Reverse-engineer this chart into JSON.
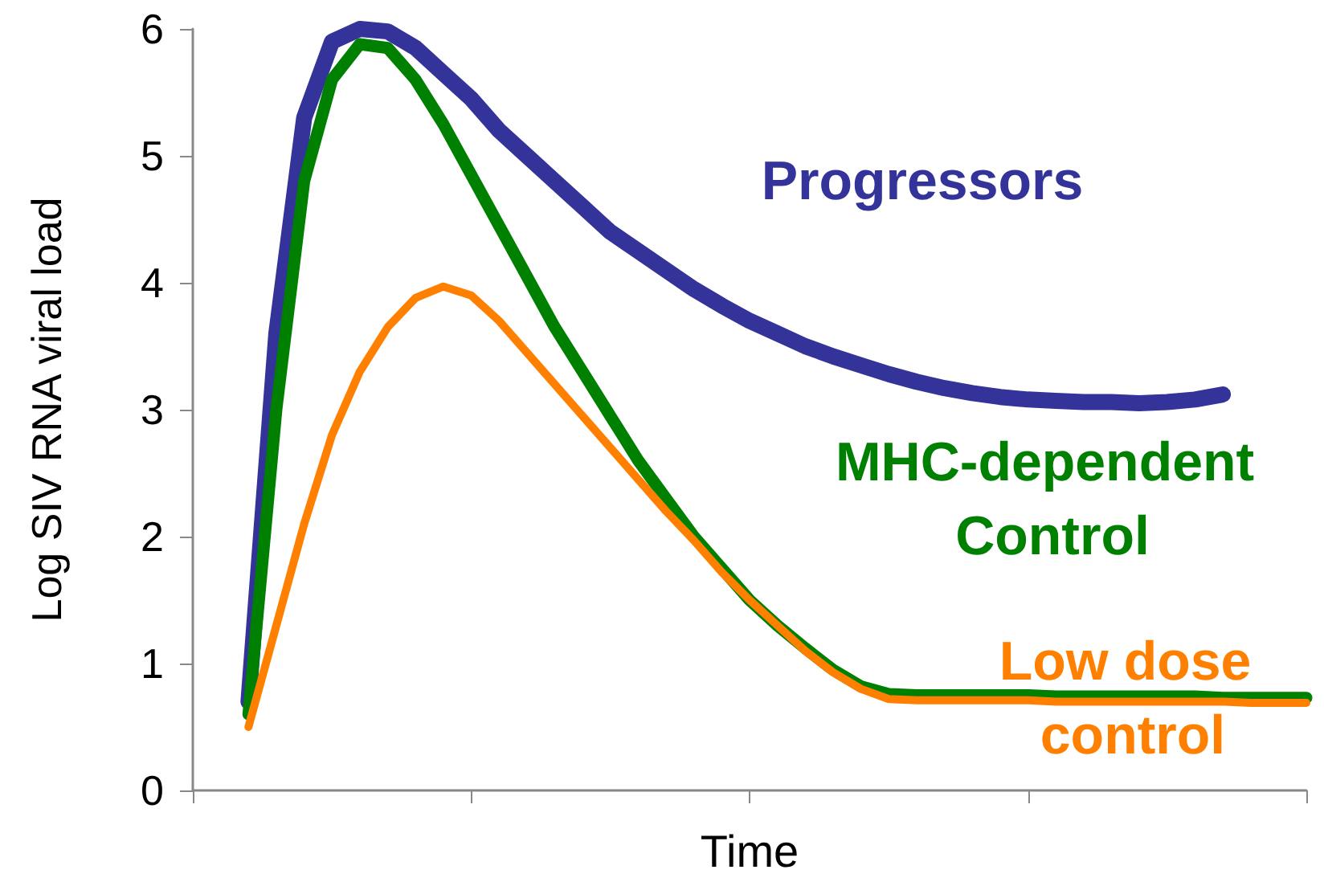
{
  "chart_data": {
    "type": "line",
    "xlabel": "Time",
    "ylabel": "Log SIV RNA viral load",
    "ylim": [
      0,
      6
    ],
    "yticks": [
      0,
      1,
      2,
      3,
      4,
      5,
      6
    ],
    "grid": false,
    "legend": false,
    "marker": "none",
    "line_style": "solid",
    "categories": [
      null,
      null,
      null,
      null,
      null,
      null,
      null,
      null,
      null,
      null,
      null,
      null,
      null,
      null,
      null,
      null,
      null,
      null,
      null,
      null,
      null,
      null,
      null,
      null,
      null,
      null,
      null,
      null,
      null,
      null,
      null,
      null,
      null,
      null,
      null,
      null,
      null,
      null,
      null,
      null,
      null
    ],
    "series": [
      {
        "name": "Progressors",
        "color": "#333399",
        "values": [
          null,
          null,
          0.7,
          3.6,
          5.3,
          5.9,
          6.0,
          5.98,
          5.85,
          5.65,
          5.45,
          5.2,
          5.0,
          4.8,
          4.6,
          4.4,
          4.25,
          4.1,
          3.95,
          3.82,
          3.7,
          3.6,
          3.5,
          3.42,
          3.35,
          3.28,
          3.22,
          3.17,
          3.13,
          3.1,
          3.08,
          3.07,
          3.06,
          3.06,
          3.05,
          3.06,
          3.08,
          3.12,
          null,
          null,
          null
        ]
      },
      {
        "name": "MHC-dependent Control",
        "color": "#008000",
        "values": [
          null,
          null,
          0.6,
          3.0,
          4.8,
          5.6,
          5.88,
          5.85,
          5.6,
          5.25,
          4.85,
          4.45,
          4.05,
          3.65,
          3.3,
          2.95,
          2.6,
          2.3,
          2.0,
          1.75,
          1.5,
          1.3,
          1.12,
          0.95,
          0.82,
          0.76,
          0.75,
          0.75,
          0.75,
          0.75,
          0.75,
          0.74,
          0.74,
          0.74,
          0.74,
          0.74,
          0.74,
          0.73,
          0.73,
          0.73,
          0.73
        ]
      },
      {
        "name": "Low dose control",
        "color": "#ff8000",
        "values": [
          null,
          null,
          0.5,
          1.3,
          2.1,
          2.8,
          3.3,
          3.65,
          3.88,
          3.97,
          3.9,
          3.7,
          3.45,
          3.2,
          2.95,
          2.7,
          2.45,
          2.2,
          1.97,
          1.72,
          1.5,
          1.3,
          1.1,
          0.93,
          0.8,
          0.72,
          0.71,
          0.71,
          0.71,
          0.71,
          0.71,
          0.7,
          0.7,
          0.7,
          0.7,
          0.7,
          0.7,
          0.7,
          0.69,
          0.69,
          0.69
        ]
      }
    ]
  }
}
